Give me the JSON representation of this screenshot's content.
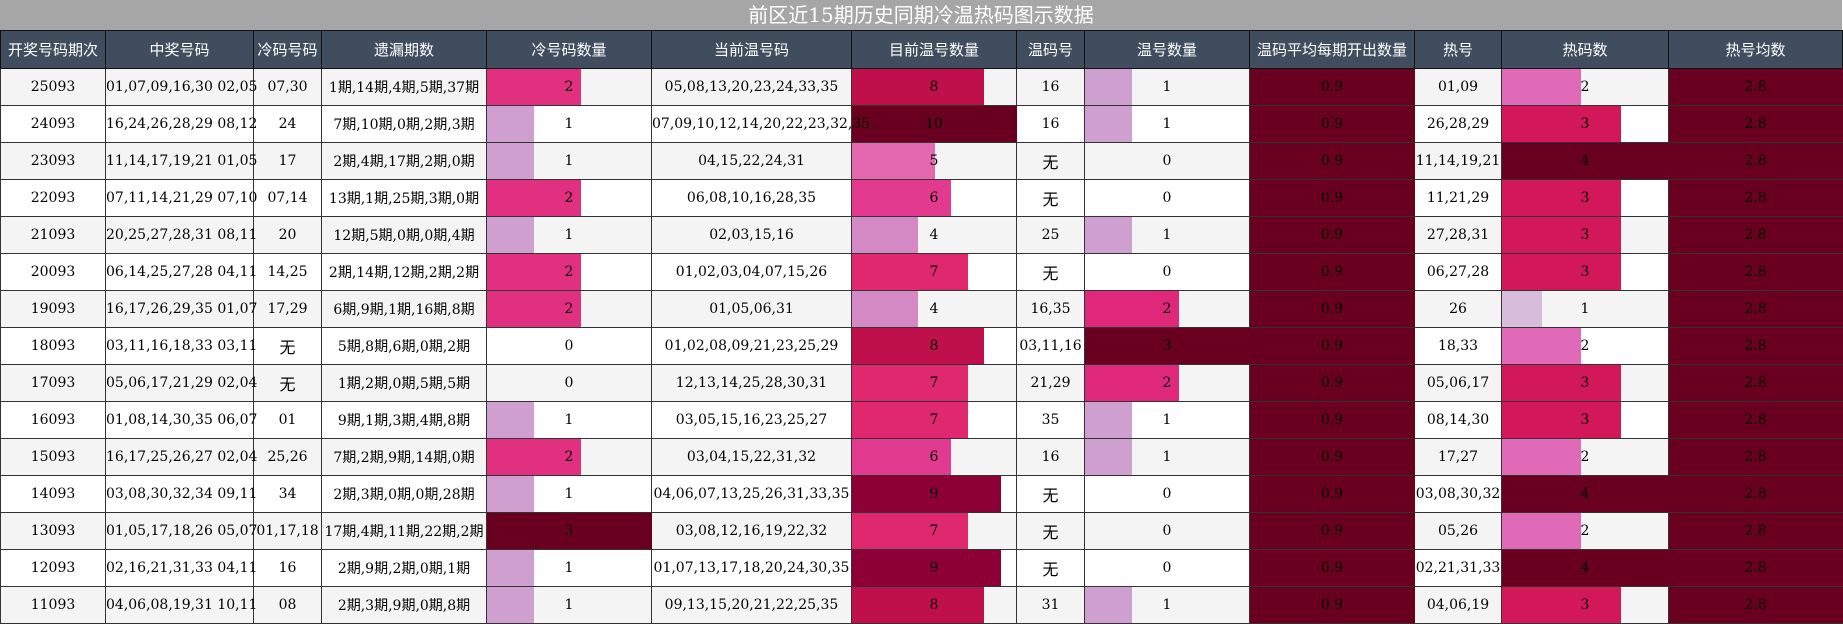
{
  "title": "前区近15期历史同期冷温热码图示数据",
  "headers": [
    "开奖号码期次",
    "中奖号码",
    "冷码号码",
    "遗漏期数",
    "冷号码数量",
    "当前温号码",
    "目前温号数量",
    "温码号",
    "温号数量",
    "温码平均每期开出数量",
    "热号",
    "热码数",
    "热号均数"
  ],
  "colors": {
    "header_bg": "#3f4d5e",
    "title_bg": "#a6a6a6"
  },
  "rows": [
    {
      "period": "25093",
      "numbers": "01,07,09,16,30 02,05",
      "cold": "07,30",
      "miss": "1期,14期,4期,5期,37期",
      "cold_count": "2",
      "warm_current": "05,08,13,20,23,24,33,35",
      "warm_now_count": "8",
      "warm_codes": "16",
      "warm_count": "1",
      "warm_avg": "0.9",
      "hot": "01,09",
      "hot_count": "2",
      "hot_avg": "2.8"
    },
    {
      "period": "24093",
      "numbers": "16,24,26,28,29 08,12",
      "cold": "24",
      "miss": "7期,10期,0期,2期,3期",
      "cold_count": "1",
      "warm_current": "07,09,10,12,14,20,22,23,32,35",
      "warm_now_count": "10",
      "warm_codes": "16",
      "warm_count": "1",
      "warm_avg": "0.9",
      "hot": "26,28,29",
      "hot_count": "3",
      "hot_avg": "2.8"
    },
    {
      "period": "23093",
      "numbers": "11,14,17,19,21 01,05",
      "cold": "17",
      "miss": "2期,4期,17期,2期,0期",
      "cold_count": "1",
      "warm_current": "04,15,22,24,31",
      "warm_now_count": "5",
      "warm_codes": "无",
      "warm_count": "0",
      "warm_avg": "0.9",
      "hot": "11,14,19,21",
      "hot_count": "4",
      "hot_avg": "2.8"
    },
    {
      "period": "22093",
      "numbers": "07,11,14,21,29 07,10",
      "cold": "07,14",
      "miss": "13期,1期,25期,3期,0期",
      "cold_count": "2",
      "warm_current": "06,08,10,16,28,35",
      "warm_now_count": "6",
      "warm_codes": "无",
      "warm_count": "0",
      "warm_avg": "0.9",
      "hot": "11,21,29",
      "hot_count": "3",
      "hot_avg": "2.8"
    },
    {
      "period": "21093",
      "numbers": "20,25,27,28,31 08,11",
      "cold": "20",
      "miss": "12期,5期,0期,0期,4期",
      "cold_count": "1",
      "warm_current": "02,03,15,16",
      "warm_now_count": "4",
      "warm_codes": "25",
      "warm_count": "1",
      "warm_avg": "0.9",
      "hot": "27,28,31",
      "hot_count": "3",
      "hot_avg": "2.8"
    },
    {
      "period": "20093",
      "numbers": "06,14,25,27,28 04,11",
      "cold": "14,25",
      "miss": "2期,14期,12期,2期,2期",
      "cold_count": "2",
      "warm_current": "01,02,03,04,07,15,26",
      "warm_now_count": "7",
      "warm_codes": "无",
      "warm_count": "0",
      "warm_avg": "0.9",
      "hot": "06,27,28",
      "hot_count": "3",
      "hot_avg": "2.8"
    },
    {
      "period": "19093",
      "numbers": "16,17,26,29,35 01,07",
      "cold": "17,29",
      "miss": "6期,9期,1期,16期,8期",
      "cold_count": "2",
      "warm_current": "01,05,06,31",
      "warm_now_count": "4",
      "warm_codes": "16,35",
      "warm_count": "2",
      "warm_avg": "0.9",
      "hot": "26",
      "hot_count": "1",
      "hot_avg": "2.8"
    },
    {
      "period": "18093",
      "numbers": "03,11,16,18,33 03,11",
      "cold": "无",
      "miss": "5期,8期,6期,0期,2期",
      "cold_count": "0",
      "warm_current": "01,02,08,09,21,23,25,29",
      "warm_now_count": "8",
      "warm_codes": "03,11,16",
      "warm_count": "3",
      "warm_avg": "0.9",
      "hot": "18,33",
      "hot_count": "2",
      "hot_avg": "2.8"
    },
    {
      "period": "17093",
      "numbers": "05,06,17,21,29 02,04",
      "cold": "无",
      "miss": "1期,2期,0期,5期,5期",
      "cold_count": "0",
      "warm_current": "12,13,14,25,28,30,31",
      "warm_now_count": "7",
      "warm_codes": "21,29",
      "warm_count": "2",
      "warm_avg": "0.9",
      "hot": "05,06,17",
      "hot_count": "3",
      "hot_avg": "2.8"
    },
    {
      "period": "16093",
      "numbers": "01,08,14,30,35 06,07",
      "cold": "01",
      "miss": "9期,1期,3期,4期,8期",
      "cold_count": "1",
      "warm_current": "03,05,15,16,23,25,27",
      "warm_now_count": "7",
      "warm_codes": "35",
      "warm_count": "1",
      "warm_avg": "0.9",
      "hot": "08,14,30",
      "hot_count": "3",
      "hot_avg": "2.8"
    },
    {
      "period": "15093",
      "numbers": "16,17,25,26,27 02,04",
      "cold": "25,26",
      "miss": "7期,2期,9期,14期,0期",
      "cold_count": "2",
      "warm_current": "03,04,15,22,31,32",
      "warm_now_count": "6",
      "warm_codes": "16",
      "warm_count": "1",
      "warm_avg": "0.9",
      "hot": "17,27",
      "hot_count": "2",
      "hot_avg": "2.8"
    },
    {
      "period": "14093",
      "numbers": "03,08,30,32,34 09,11",
      "cold": "34",
      "miss": "2期,3期,0期,0期,28期",
      "cold_count": "1",
      "warm_current": "04,06,07,13,25,26,31,33,35",
      "warm_now_count": "9",
      "warm_codes": "无",
      "warm_count": "0",
      "warm_avg": "0.9",
      "hot": "03,08,30,32",
      "hot_count": "4",
      "hot_avg": "2.8"
    },
    {
      "period": "13093",
      "numbers": "01,05,17,18,26 05,07",
      "cold": "01,17,18",
      "miss": "17期,4期,11期,22期,2期",
      "cold_count": "3",
      "warm_current": "03,08,12,16,19,22,32",
      "warm_now_count": "7",
      "warm_codes": "无",
      "warm_count": "0",
      "warm_avg": "0.9",
      "hot": "05,26",
      "hot_count": "2",
      "hot_avg": "2.8"
    },
    {
      "period": "12093",
      "numbers": "02,16,21,31,33 04,11",
      "cold": "16",
      "miss": "2期,9期,2期,0期,1期",
      "cold_count": "1",
      "warm_current": "01,07,13,17,18,20,24,30,35",
      "warm_now_count": "9",
      "warm_codes": "无",
      "warm_count": "0",
      "warm_avg": "0.9",
      "hot": "02,21,31,33",
      "hot_count": "4",
      "hot_avg": "2.8"
    },
    {
      "period": "11093",
      "numbers": "04,06,08,19,31 10,11",
      "cold": "08",
      "miss": "2期,3期,9期,0期,8期",
      "cold_count": "1",
      "warm_current": "09,13,15,20,21,22,25,35",
      "warm_now_count": "8",
      "warm_codes": "31",
      "warm_count": "1",
      "warm_avg": "0.9",
      "hot": "04,06,19",
      "hot_count": "3",
      "hot_avg": "2.8"
    }
  ]
}
